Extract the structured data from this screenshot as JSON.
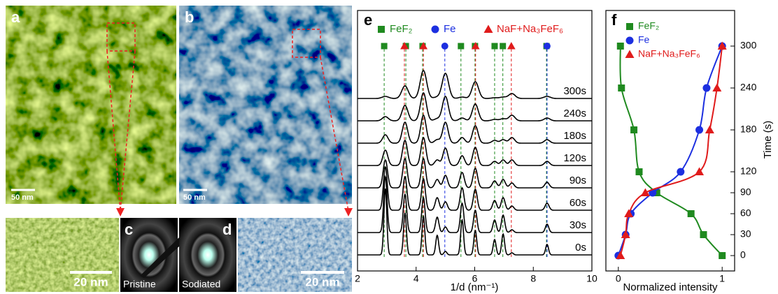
{
  "panels": {
    "a": {
      "label": "a",
      "scale_bar": "50 nm"
    },
    "b": {
      "label": "b",
      "scale_bar": "50 nm"
    },
    "c": {
      "label": "c",
      "caption": "Pristine"
    },
    "d": {
      "label": "d",
      "caption": "Sodiated"
    },
    "a_zoom": {
      "scale_bar": "20 nm"
    },
    "b_zoom": {
      "scale_bar": "20 nm"
    }
  },
  "chart_data": [
    {
      "type": "waterfall-line",
      "panel": "e",
      "xlabel": "1/d (nm⁻¹)",
      "xlim": [
        2,
        10
      ],
      "xticks": [
        2,
        4,
        6,
        8,
        10
      ],
      "x": [
        2.95,
        3.62,
        4.25,
        4.72,
        5.0,
        5.57,
        6.02,
        6.68,
        6.97,
        7.27,
        8.47
      ],
      "series": [
        {
          "name": "0s",
          "values": [
            95,
            60,
            55,
            28,
            5,
            50,
            35,
            22,
            30,
            3,
            15
          ]
        },
        {
          "name": "30s",
          "values": [
            80,
            55,
            50,
            22,
            8,
            42,
            32,
            18,
            25,
            4,
            12
          ]
        },
        {
          "name": "60s",
          "values": [
            62,
            48,
            45,
            18,
            12,
            32,
            30,
            14,
            18,
            6,
            10
          ]
        },
        {
          "name": "90s",
          "values": [
            40,
            42,
            42,
            12,
            18,
            22,
            28,
            10,
            12,
            7,
            8
          ]
        },
        {
          "name": "120s",
          "values": [
            22,
            36,
            40,
            8,
            25,
            14,
            26,
            6,
            8,
            8,
            6
          ]
        },
        {
          "name": "180s",
          "values": [
            12,
            30,
            40,
            5,
            30,
            8,
            25,
            4,
            5,
            8,
            5
          ]
        },
        {
          "name": "240s",
          "values": [
            6,
            22,
            40,
            3,
            35,
            4,
            24,
            2,
            3,
            8,
            4
          ]
        },
        {
          "name": "300s",
          "values": [
            3,
            18,
            40,
            2,
            36,
            2,
            24,
            1,
            2,
            7,
            3
          ]
        }
      ],
      "references": [
        {
          "name": "FeF₂",
          "color": "#1f8a1f",
          "marker": "square",
          "positions": [
            2.91,
            3.65,
            4.22,
            5.53,
            6.01,
            6.68,
            6.96,
            8.45
          ]
        },
        {
          "name": "Fe",
          "color": "#1c2fe0",
          "marker": "circle",
          "positions": [
            4.98,
            8.47
          ]
        },
        {
          "name": "NaF+Na₃FeF₆",
          "color": "#e01b1b",
          "marker": "triangle",
          "positions": [
            3.6,
            4.25,
            6.03,
            7.25
          ]
        }
      ]
    },
    {
      "type": "scatter",
      "panel": "f",
      "xlabel": "Normalized intensity",
      "ylabel": "Time (s)",
      "xlim": [
        -0.12,
        1.12
      ],
      "xticks": [
        0,
        1
      ],
      "ylim": [
        -22,
        351
      ],
      "yticks": [
        0,
        30,
        60,
        90,
        120,
        180,
        240,
        300
      ],
      "y": [
        0,
        30,
        60,
        90,
        120,
        180,
        240,
        300
      ],
      "series": [
        {
          "name": "FeF₂",
          "color": "#1f8a1f",
          "marker": "square",
          "values": [
            1.0,
            0.82,
            0.7,
            0.37,
            0.2,
            0.15,
            0.03,
            0.02
          ]
        },
        {
          "name": "Fe",
          "color": "#1c2fe0",
          "marker": "circle",
          "values": [
            0,
            0.07,
            0.12,
            0.33,
            0.6,
            0.78,
            0.85,
            1.0
          ]
        },
        {
          "name": "NaF+Na₃FeF₆",
          "color": "#e01b1b",
          "marker": "triangle",
          "values": [
            0.02,
            0.07,
            0.1,
            0.26,
            0.78,
            0.88,
            0.95,
            1.0
          ]
        }
      ]
    }
  ]
}
